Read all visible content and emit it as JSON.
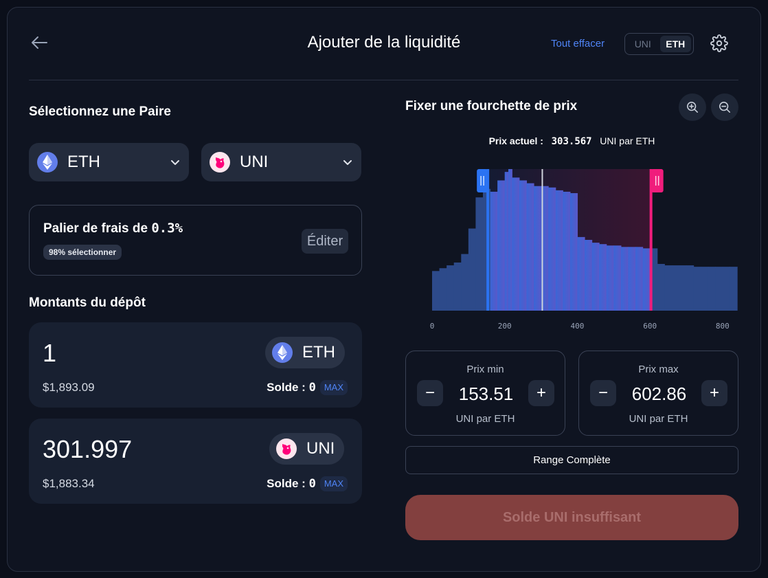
{
  "header": {
    "title": "Ajouter de la liquidité",
    "clear_all": "Tout effacer",
    "toggle": [
      "UNI",
      "ETH"
    ],
    "toggle_active": "ETH"
  },
  "pair": {
    "title": "Sélectionnez une Paire",
    "token_a": "ETH",
    "token_b": "UNI"
  },
  "fee": {
    "title": "Palier de frais de ",
    "value": "0.3%",
    "badge": "98% sélectionner",
    "edit": "Éditer"
  },
  "deposit": {
    "title": "Montants du dépôt",
    "eth": {
      "amount": "1",
      "token": "ETH",
      "usd": "$1,893.09",
      "balance_label": "Solde : ",
      "balance_value": "0",
      "max": "MAX"
    },
    "uni": {
      "amount": "301.997",
      "token": "UNI",
      "usd": "$1,883.34",
      "balance_label": "Solde : ",
      "balance_value": "0",
      "max": "MAX"
    }
  },
  "range": {
    "title": "Fixer une fourchette de prix",
    "current_label": "Prix actuel :",
    "current_value": "303.567",
    "current_unit": "UNI par ETH",
    "min": {
      "label": "Prix min",
      "value": "153.51",
      "unit": "UNI par ETH"
    },
    "max": {
      "label": "Prix max",
      "value": "602.86",
      "unit": "UNI par ETH"
    },
    "full_range": "Range Complète",
    "submit": "Solde UNI insuffisant"
  },
  "chart_data": {
    "type": "area",
    "x": [
      0,
      20,
      40,
      60,
      80,
      100,
      120,
      140,
      160,
      180,
      200,
      210,
      220,
      240,
      260,
      280,
      300,
      320,
      340,
      360,
      380,
      400,
      420,
      440,
      460,
      480,
      500,
      520,
      540,
      560,
      580,
      600,
      620,
      640,
      660,
      680,
      700,
      720,
      740,
      760,
      780,
      800,
      820,
      840
    ],
    "liquidity": [
      28,
      30,
      32,
      34,
      40,
      58,
      80,
      86,
      84,
      92,
      98,
      100,
      94,
      92,
      90,
      88,
      88,
      87,
      85,
      84,
      83,
      52,
      50,
      48,
      47,
      46,
      46,
      45,
      45,
      45,
      44,
      44,
      33,
      32,
      32,
      32,
      32,
      31,
      31,
      31,
      31,
      31,
      31,
      31
    ],
    "x_ticks": [
      "0",
      "200",
      "400",
      "600",
      "800"
    ],
    "xlim": [
      0,
      840
    ],
    "ylim": [
      0,
      100
    ],
    "current_price": 303.567,
    "range_min": 153.51,
    "range_max": 602.86,
    "colors": {
      "inactive": "#2d4a8a",
      "range_start": "#3a66d6",
      "range_end": "#5a58c8",
      "min_handle": "#2b73f2",
      "max_handle": "#f01d7c",
      "current": "#d0d4dc"
    }
  }
}
